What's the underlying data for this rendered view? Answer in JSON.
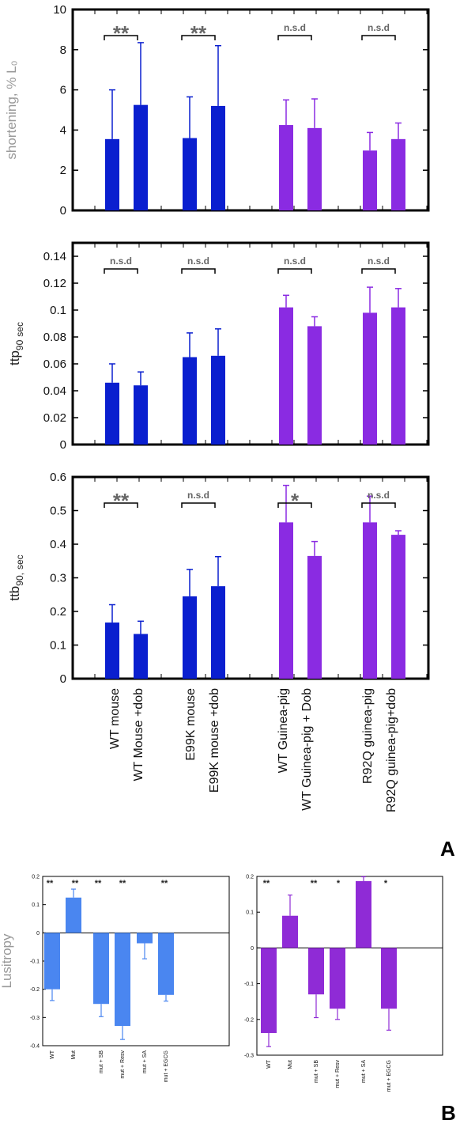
{
  "colors": {
    "blue": "#0a1fcf",
    "purple": "#8a2be2",
    "lightblue": "#4a86f0",
    "violet": "#8f2bd6",
    "sig": "#666666"
  },
  "panel_labels": {
    "a": "A",
    "b": "B"
  },
  "categories": [
    "WT mouse",
    "WT Mouse +dob",
    "E99K mouse",
    "E99K mouse +dob",
    "WT Guinea-pig",
    "WT Guinea-pig + Dob",
    "R92Q guinea-pig",
    "R92Q guinea-pig+dob"
  ],
  "chart_data": [
    {
      "type": "bar",
      "id": "shortening",
      "ylabel": "shortening, % L₀",
      "ylim": [
        0,
        10
      ],
      "yticks": [
        "0",
        "2",
        "4",
        "6",
        "8",
        "10"
      ],
      "values": [
        3.55,
        5.25,
        3.6,
        5.2,
        4.25,
        4.1,
        2.98,
        3.55
      ],
      "errors": [
        2.45,
        3.1,
        2.05,
        3.0,
        1.25,
        1.45,
        0.9,
        0.8
      ],
      "bar_colors": [
        "blue",
        "blue",
        "blue",
        "blue",
        "purple",
        "purple",
        "purple",
        "purple"
      ],
      "significance": [
        {
          "pair": [
            0,
            1
          ],
          "label": "**",
          "big": true
        },
        {
          "pair": [
            2,
            3
          ],
          "label": "**",
          "big": true
        },
        {
          "pair": [
            4,
            5
          ],
          "label": "n.s.d",
          "big": false
        },
        {
          "pair": [
            6,
            7
          ],
          "label": "n.s.d",
          "big": false
        }
      ]
    },
    {
      "type": "bar",
      "id": "ttp90",
      "ylabel": "ttp",
      "ylabel_sub": "90",
      "ylabel_unit": "sec",
      "ylim": [
        0,
        0.15
      ],
      "yticks": [
        "0",
        "0.02",
        "0.04",
        "0.06",
        "0.08",
        "0.1",
        "0.12",
        "0.14"
      ],
      "values": [
        0.046,
        0.044,
        0.065,
        0.066,
        0.102,
        0.088,
        0.098,
        0.102
      ],
      "errors": [
        0.014,
        0.01,
        0.018,
        0.02,
        0.009,
        0.007,
        0.019,
        0.014
      ],
      "bar_colors": [
        "blue",
        "blue",
        "blue",
        "blue",
        "purple",
        "purple",
        "purple",
        "purple"
      ],
      "significance": [
        {
          "pair": [
            0,
            1
          ],
          "label": "n.s.d",
          "big": false
        },
        {
          "pair": [
            2,
            3
          ],
          "label": "n.s.d",
          "big": false
        },
        {
          "pair": [
            4,
            5
          ],
          "label": "n.s.d",
          "big": false
        },
        {
          "pair": [
            6,
            7
          ],
          "label": "n.s.d",
          "big": false
        }
      ]
    },
    {
      "type": "bar",
      "id": "ttb90",
      "ylabel": "ttb",
      "ylabel_sub": "90,",
      "ylabel_unit": "sec",
      "ylim": [
        0,
        0.6
      ],
      "yticks": [
        "0",
        "0.1",
        "0.2",
        "0.3",
        "0.4",
        "0.5",
        "0.6"
      ],
      "values": [
        0.167,
        0.133,
        0.245,
        0.275,
        0.465,
        0.365,
        0.465,
        0.428
      ],
      "errors": [
        0.053,
        0.038,
        0.08,
        0.088,
        0.11,
        0.043,
        0.078,
        0.012
      ],
      "bar_colors": [
        "blue",
        "blue",
        "blue",
        "blue",
        "purple",
        "purple",
        "purple",
        "purple"
      ],
      "significance": [
        {
          "pair": [
            0,
            1
          ],
          "label": "**",
          "big": true
        },
        {
          "pair": [
            2,
            3
          ],
          "label": "n.s.d",
          "big": false
        },
        {
          "pair": [
            4,
            5
          ],
          "label": "*",
          "big": true
        },
        {
          "pair": [
            6,
            7
          ],
          "label": "n.s.d",
          "big": false
        }
      ]
    },
    {
      "type": "bar",
      "id": "lusitropy-left",
      "ylabel": "Lusitropy",
      "ylim": [
        -0.4,
        0.2
      ],
      "yticks": [
        "-0.4",
        "-0.3",
        "-0.2",
        "-0.1",
        "0",
        "0.1",
        "0.2"
      ],
      "categories": [
        "WT",
        "Mut",
        "mut + SB",
        "mut + Resv",
        "mut + SA",
        "mut + EGCG"
      ],
      "values": [
        -0.2,
        0.125,
        -0.252,
        -0.33,
        -0.037,
        -0.22
      ],
      "errors": [
        0.04,
        0.03,
        0.045,
        0.048,
        0.055,
        0.022
      ],
      "significance": [
        "**",
        "**",
        "**",
        "**",
        "",
        "**"
      ]
    },
    {
      "type": "bar",
      "id": "lusitropy-right",
      "ylim": [
        -0.3,
        0.2
      ],
      "yticks": [
        "-0.3",
        "-0.2",
        "-0.1",
        "0",
        "0.1",
        "0.2"
      ],
      "categories": [
        "WT",
        "Mut",
        "mut + SB",
        "mut + Resv",
        "mut + SA",
        "mut + EGCG"
      ],
      "values": [
        -0.238,
        0.09,
        -0.13,
        -0.17,
        0.187,
        -0.17
      ],
      "errors": [
        0.038,
        0.058,
        0.065,
        0.03,
        0.012,
        0.06
      ],
      "significance": [
        "**",
        "",
        "**",
        "*",
        "",
        "*"
      ]
    }
  ]
}
